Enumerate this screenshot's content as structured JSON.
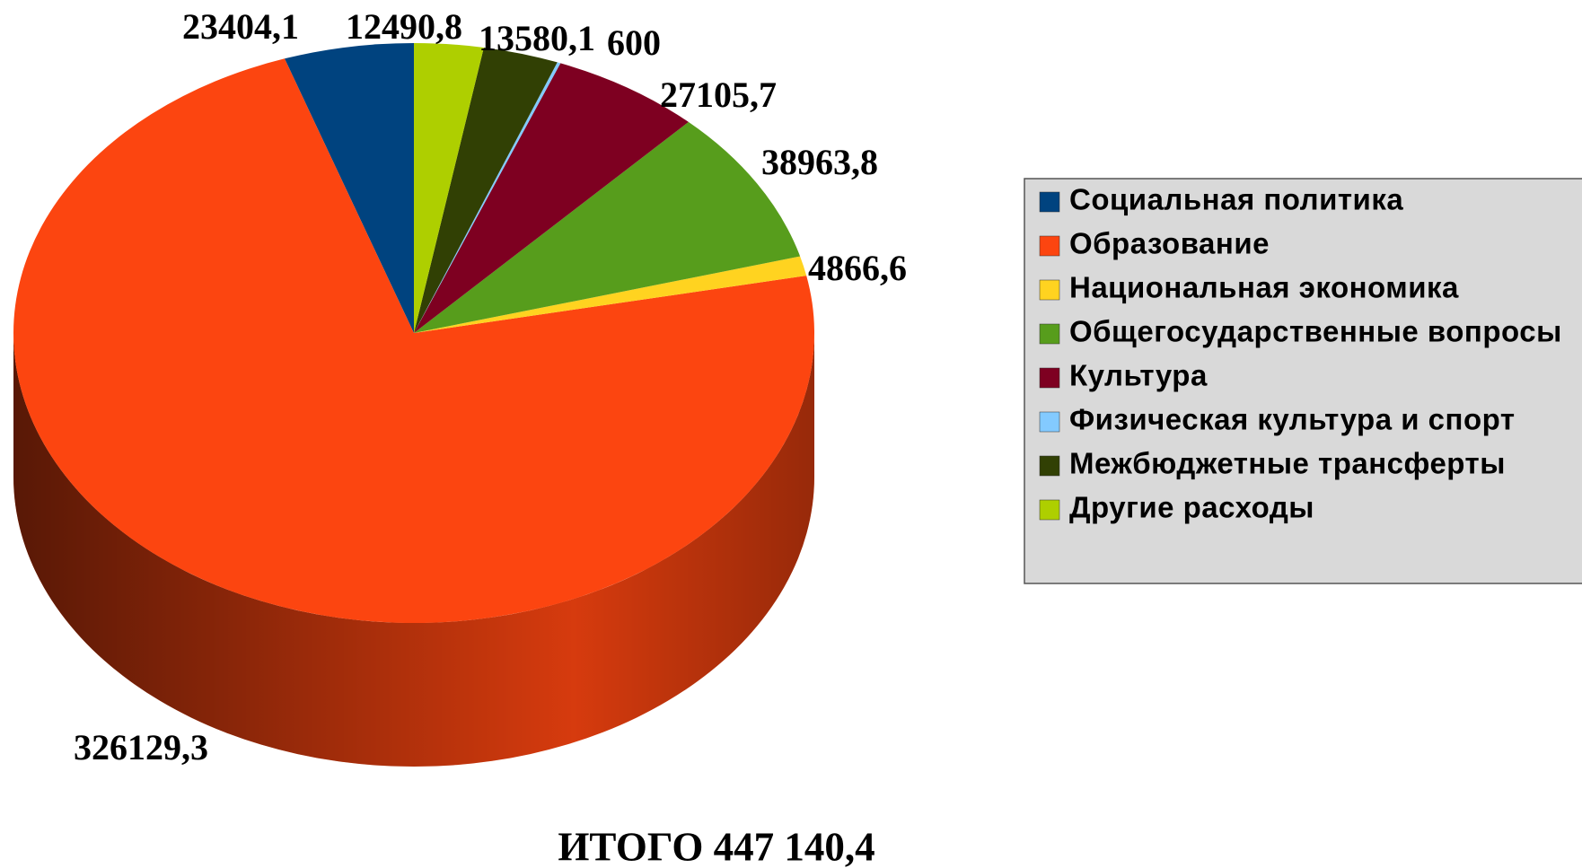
{
  "chart_data": {
    "type": "pie3d",
    "categories": [
      "Социальная политика",
      "Образование",
      "Национальная экономика",
      "Общегосударственные вопросы",
      "Культура",
      "Физическая культура и спорт",
      "Межбюджетные трансферты",
      "Другие расходы"
    ],
    "values": [
      23404.1,
      326129.3,
      4866.6,
      38963.8,
      27105.7,
      600,
      13580.1,
      12490.8
    ],
    "value_labels": [
      "23404,1",
      "326129,3",
      "4866,6",
      "38963,8",
      "27105,7",
      "600",
      "13580,1",
      "12490,8"
    ],
    "colors": [
      "#00437f",
      "#fc4510",
      "#ffd320",
      "#579d1c",
      "#7e0021",
      "#83caff",
      "#314004",
      "#aecf00"
    ],
    "total_label": "ИТОГО 447 140,4",
    "legend": "right"
  }
}
